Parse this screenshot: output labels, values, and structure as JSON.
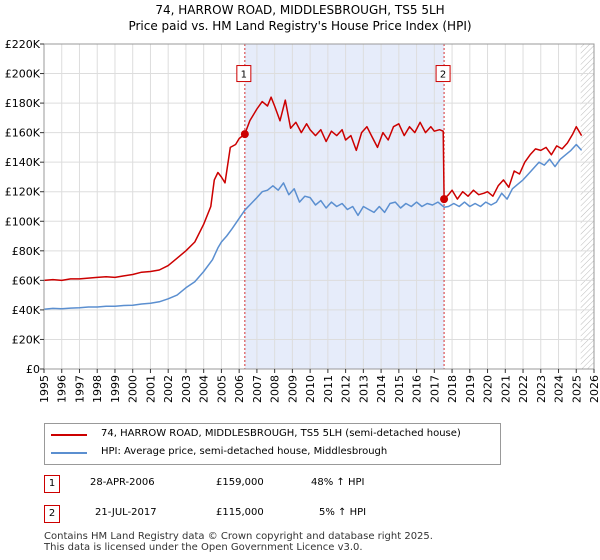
{
  "title_line1": "74, HARROW ROAD, MIDDLESBROUGH, TS5 5LH",
  "title_line2": "Price paid vs. HM Land Registry's House Price Index (HPI)",
  "chart_data": {
    "type": "line",
    "xlim": [
      1995,
      2026
    ],
    "ylim": [
      0,
      220000
    ],
    "y_ticks": [
      0,
      20000,
      40000,
      60000,
      80000,
      100000,
      120000,
      140000,
      160000,
      180000,
      200000,
      220000
    ],
    "y_tick_labels": [
      "£0",
      "£20K",
      "£40K",
      "£60K",
      "£80K",
      "£100K",
      "£120K",
      "£140K",
      "£160K",
      "£180K",
      "£200K",
      "£220K"
    ],
    "x_ticks": [
      1995,
      1996,
      1997,
      1998,
      1999,
      2000,
      2001,
      2002,
      2003,
      2004,
      2005,
      2006,
      2007,
      2008,
      2009,
      2010,
      2011,
      2012,
      2013,
      2014,
      2015,
      2016,
      2017,
      2018,
      2019,
      2020,
      2021,
      2022,
      2023,
      2024,
      2025,
      2026
    ],
    "x_tick_labels": [
      "1995",
      "1996",
      "1997",
      "1998",
      "1999",
      "2000",
      "2001",
      "2002",
      "2003",
      "2004",
      "2005",
      "2006",
      "2007",
      "2008",
      "2009",
      "2010",
      "2011",
      "2012",
      "2013",
      "2014",
      "2015",
      "2016",
      "2017",
      "2018",
      "2019",
      "2020",
      "2021",
      "2022",
      "2023",
      "2024",
      "2025",
      "2026"
    ],
    "shaded_region": [
      2006.32,
      2017.55
    ],
    "hatched_region": [
      2025.25,
      2026
    ],
    "series": [
      {
        "name": "74, HARROW ROAD, MIDDLESBROUGH, TS5 5LH (semi-detached house)",
        "color": "#cc0000",
        "points": [
          [
            1995.0,
            60000
          ],
          [
            1995.5,
            60500
          ],
          [
            1996.0,
            60000
          ],
          [
            1996.5,
            61000
          ],
          [
            1997.0,
            61000
          ],
          [
            1997.5,
            61500
          ],
          [
            1998.0,
            62000
          ],
          [
            1998.5,
            62500
          ],
          [
            1999.0,
            62000
          ],
          [
            1999.5,
            63000
          ],
          [
            2000.0,
            64000
          ],
          [
            2000.5,
            65500
          ],
          [
            2001.0,
            66000
          ],
          [
            2001.5,
            67000
          ],
          [
            2002.0,
            70000
          ],
          [
            2002.5,
            75000
          ],
          [
            2003.0,
            80000
          ],
          [
            2003.5,
            86000
          ],
          [
            2004.0,
            98000
          ],
          [
            2004.4,
            110000
          ],
          [
            2004.6,
            128000
          ],
          [
            2004.8,
            133000
          ],
          [
            2005.0,
            130000
          ],
          [
            2005.2,
            126000
          ],
          [
            2005.5,
            150000
          ],
          [
            2005.8,
            152000
          ],
          [
            2006.0,
            156000
          ],
          [
            2006.32,
            159000
          ],
          [
            2006.6,
            168000
          ],
          [
            2007.0,
            176000
          ],
          [
            2007.3,
            181000
          ],
          [
            2007.6,
            178000
          ],
          [
            2007.8,
            184000
          ],
          [
            2008.0,
            178000
          ],
          [
            2008.3,
            168000
          ],
          [
            2008.6,
            182000
          ],
          [
            2008.9,
            163000
          ],
          [
            2009.2,
            167000
          ],
          [
            2009.5,
            160000
          ],
          [
            2009.8,
            166000
          ],
          [
            2010.0,
            162000
          ],
          [
            2010.3,
            158000
          ],
          [
            2010.6,
            162000
          ],
          [
            2010.9,
            154000
          ],
          [
            2011.2,
            161000
          ],
          [
            2011.5,
            158000
          ],
          [
            2011.8,
            162000
          ],
          [
            2012.0,
            155000
          ],
          [
            2012.3,
            158000
          ],
          [
            2012.6,
            148000
          ],
          [
            2012.9,
            160000
          ],
          [
            2013.2,
            164000
          ],
          [
            2013.5,
            157000
          ],
          [
            2013.8,
            150000
          ],
          [
            2014.1,
            160000
          ],
          [
            2014.4,
            155000
          ],
          [
            2014.7,
            164000
          ],
          [
            2015.0,
            166000
          ],
          [
            2015.3,
            158000
          ],
          [
            2015.6,
            164000
          ],
          [
            2015.9,
            160000
          ],
          [
            2016.2,
            167000
          ],
          [
            2016.5,
            160000
          ],
          [
            2016.8,
            164000
          ],
          [
            2017.0,
            161000
          ],
          [
            2017.3,
            162000
          ],
          [
            2017.5,
            161000
          ],
          [
            2017.55,
            115000
          ],
          [
            2017.8,
            118000
          ],
          [
            2018.0,
            121000
          ],
          [
            2018.3,
            115000
          ],
          [
            2018.6,
            120000
          ],
          [
            2018.9,
            117000
          ],
          [
            2019.2,
            121000
          ],
          [
            2019.5,
            118000
          ],
          [
            2019.8,
            119000
          ],
          [
            2020.0,
            120000
          ],
          [
            2020.3,
            117000
          ],
          [
            2020.6,
            124000
          ],
          [
            2020.9,
            128000
          ],
          [
            2021.2,
            123000
          ],
          [
            2021.5,
            134000
          ],
          [
            2021.8,
            132000
          ],
          [
            2022.1,
            140000
          ],
          [
            2022.4,
            145000
          ],
          [
            2022.7,
            149000
          ],
          [
            2023.0,
            148000
          ],
          [
            2023.3,
            150000
          ],
          [
            2023.6,
            145000
          ],
          [
            2023.9,
            151000
          ],
          [
            2024.2,
            149000
          ],
          [
            2024.5,
            153000
          ],
          [
            2024.8,
            159000
          ],
          [
            2025.0,
            164000
          ],
          [
            2025.3,
            158000
          ]
        ]
      },
      {
        "name": "HPI: Average price, semi-detached house, Middlesbrough",
        "color": "#5b8fd0",
        "points": [
          [
            1995.0,
            40500
          ],
          [
            1995.5,
            41000
          ],
          [
            1996.0,
            40800
          ],
          [
            1996.5,
            41200
          ],
          [
            1997.0,
            41500
          ],
          [
            1997.5,
            42000
          ],
          [
            1998.0,
            42000
          ],
          [
            1998.5,
            42500
          ],
          [
            1999.0,
            42500
          ],
          [
            1999.5,
            43000
          ],
          [
            2000.0,
            43200
          ],
          [
            2000.5,
            44000
          ],
          [
            2001.0,
            44500
          ],
          [
            2001.5,
            45500
          ],
          [
            2002.0,
            47500
          ],
          [
            2002.5,
            50000
          ],
          [
            2003.0,
            55000
          ],
          [
            2003.5,
            59000
          ],
          [
            2004.0,
            66000
          ],
          [
            2004.5,
            74000
          ],
          [
            2004.8,
            82000
          ],
          [
            2005.0,
            86000
          ],
          [
            2005.3,
            90000
          ],
          [
            2005.6,
            95000
          ],
          [
            2006.0,
            102000
          ],
          [
            2006.32,
            107500
          ],
          [
            2006.6,
            111000
          ],
          [
            2007.0,
            116000
          ],
          [
            2007.3,
            120000
          ],
          [
            2007.6,
            121000
          ],
          [
            2007.9,
            124000
          ],
          [
            2008.2,
            121000
          ],
          [
            2008.5,
            126000
          ],
          [
            2008.8,
            118000
          ],
          [
            2009.1,
            122000
          ],
          [
            2009.4,
            113000
          ],
          [
            2009.7,
            117000
          ],
          [
            2010.0,
            116000
          ],
          [
            2010.3,
            111000
          ],
          [
            2010.6,
            114000
          ],
          [
            2010.9,
            109000
          ],
          [
            2011.2,
            113000
          ],
          [
            2011.5,
            110000
          ],
          [
            2011.8,
            112000
          ],
          [
            2012.1,
            108000
          ],
          [
            2012.4,
            110000
          ],
          [
            2012.7,
            104000
          ],
          [
            2013.0,
            110000
          ],
          [
            2013.3,
            108000
          ],
          [
            2013.6,
            106000
          ],
          [
            2013.9,
            110000
          ],
          [
            2014.2,
            106000
          ],
          [
            2014.5,
            112000
          ],
          [
            2014.8,
            113000
          ],
          [
            2015.1,
            109000
          ],
          [
            2015.4,
            112000
          ],
          [
            2015.7,
            110000
          ],
          [
            2016.0,
            113000
          ],
          [
            2016.3,
            110000
          ],
          [
            2016.6,
            112000
          ],
          [
            2016.9,
            111000
          ],
          [
            2017.2,
            113000
          ],
          [
            2017.55,
            109500
          ],
          [
            2017.8,
            110000
          ],
          [
            2018.1,
            112000
          ],
          [
            2018.4,
            110000
          ],
          [
            2018.7,
            113000
          ],
          [
            2019.0,
            110000
          ],
          [
            2019.3,
            112000
          ],
          [
            2019.6,
            110000
          ],
          [
            2019.9,
            113000
          ],
          [
            2020.2,
            111000
          ],
          [
            2020.5,
            113000
          ],
          [
            2020.8,
            119000
          ],
          [
            2021.1,
            115000
          ],
          [
            2021.4,
            122000
          ],
          [
            2021.7,
            125000
          ],
          [
            2022.0,
            128000
          ],
          [
            2022.3,
            132000
          ],
          [
            2022.6,
            136000
          ],
          [
            2022.9,
            140000
          ],
          [
            2023.2,
            138000
          ],
          [
            2023.5,
            142000
          ],
          [
            2023.8,
            137000
          ],
          [
            2024.1,
            142000
          ],
          [
            2024.4,
            145000
          ],
          [
            2024.7,
            148000
          ],
          [
            2025.0,
            152000
          ],
          [
            2025.3,
            148000
          ]
        ]
      }
    ],
    "markers": [
      {
        "label": "1",
        "x": 2006.32,
        "y": 159000
      },
      {
        "label": "2",
        "x": 2017.55,
        "y": 115000
      }
    ]
  },
  "legend": {
    "red_label": "74, HARROW ROAD, MIDDLESBROUGH, TS5 5LH (semi-detached house)",
    "blue_label": "HPI: Average price, semi-detached house, Middlesbrough"
  },
  "transactions": [
    {
      "num": "1",
      "date": "28-APR-2006",
      "price": "£159,000",
      "hpi": "48% ↑ HPI"
    },
    {
      "num": "2",
      "date": "21-JUL-2017",
      "price": "£115,000",
      "hpi": "5% ↑ HPI"
    }
  ],
  "footer_line1": "Contains HM Land Registry data © Crown copyright and database right 2025.",
  "footer_line2": "This data is licensed under the Open Government Licence v3.0.",
  "colors": {
    "red": "#cc0000",
    "blue": "#5b8fd0",
    "shade": "#e6ecfa"
  }
}
